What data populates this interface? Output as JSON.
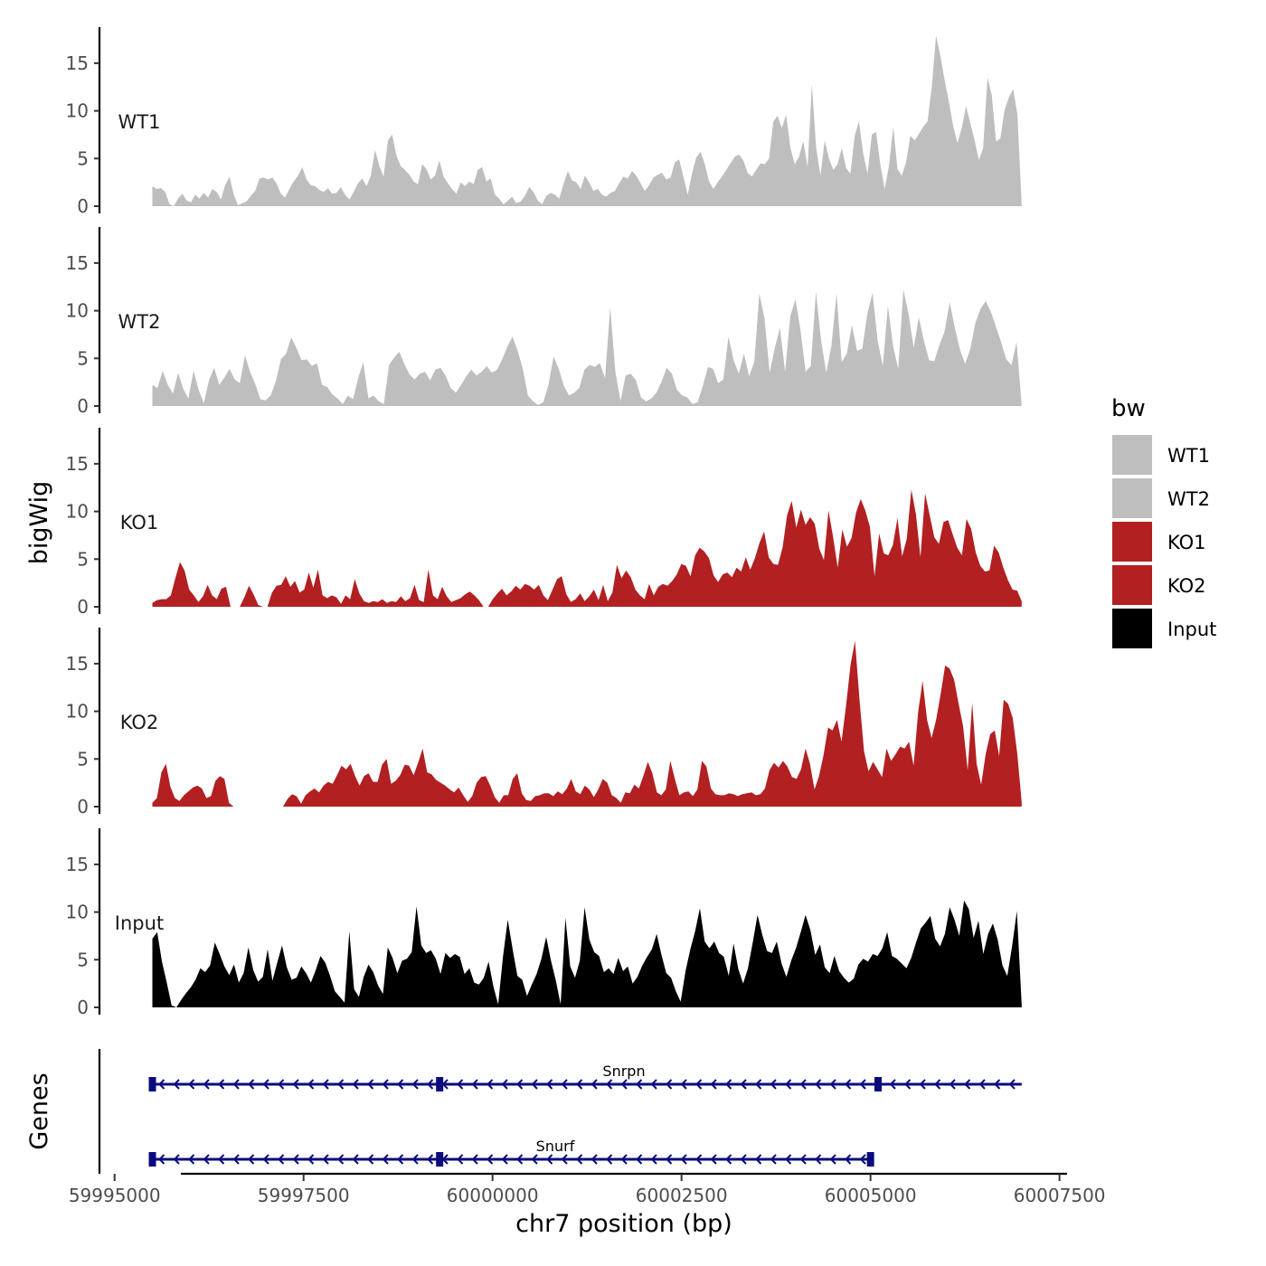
{
  "chart_data": {
    "type": "area",
    "ylabel": "bigWig",
    "xlabel": "chr7 position (bp)",
    "xlim": [
      59994800,
      60007600
    ],
    "x_ticks": [
      59995000,
      59997500,
      60000000,
      60002500,
      60005000,
      60007500
    ],
    "x_tick_labels": [
      "59995000",
      "59997500",
      "60000000",
      "60002500",
      "60005000",
      "60007500"
    ],
    "ylim": [
      0,
      18.5
    ],
    "y_ticks": [
      0,
      5,
      10,
      15
    ],
    "y_tick_labels": [
      "0",
      "5",
      "10",
      "15"
    ],
    "series_x_start": 59995500,
    "series_x_end": 60007000,
    "tracks": [
      {
        "name": "WT1",
        "color": "#bebebe",
        "values": [
          2.1,
          1.8,
          1.9,
          1.5,
          0.2,
          0,
          0.8,
          1.3,
          0.6,
          0.4,
          1.2,
          0.8,
          1.4,
          0.9,
          1.8,
          1.5,
          0.7,
          2.2,
          3.1,
          1.2,
          0.1,
          0.3,
          0.5,
          1.1,
          1.6,
          2.9,
          3.0,
          2.8,
          3.0,
          2.4,
          1.3,
          0.9,
          1.8,
          2.6,
          3.2,
          4.1,
          2.8,
          2.2,
          2.1,
          1.7,
          1.5,
          1.9,
          1.3,
          1.4,
          2.0,
          1.2,
          0.7,
          1.5,
          2.4,
          2.9,
          2.1,
          3.2,
          5.9,
          4.2,
          3.1,
          6.9,
          7.5,
          5.3,
          4.2,
          3.8,
          3.3,
          2.6,
          2.3,
          4.4,
          3.9,
          2.8,
          3.2,
          4.8,
          3.1,
          2.4,
          1.8,
          1.3,
          2.5,
          2.1,
          2.6,
          2.3,
          3.8,
          4.1,
          2.6,
          2.9,
          1.2,
          0.8,
          0.2,
          0.6,
          1.0,
          0.3,
          0.5,
          1.1,
          2.0,
          1.5,
          0.6,
          0.2,
          1.1,
          1.4,
          1.2,
          0.8,
          2.3,
          3.7,
          2.7,
          2.5,
          1.8,
          3.2,
          2.5,
          1.6,
          1.8,
          1.2,
          1.0,
          1.4,
          1.6,
          2.4,
          3.1,
          2.9,
          3.7,
          3.2,
          2.4,
          1.6,
          2.2,
          3.0,
          3.3,
          3.5,
          2.8,
          3.0,
          4.6,
          4.9,
          3.1,
          1.2,
          3.4,
          5.1,
          5.7,
          4.4,
          2.6,
          1.8,
          2.5,
          3.1,
          3.8,
          4.5,
          5.2,
          5.4,
          4.8,
          3.5,
          3.1,
          3.8,
          4.5,
          4.4,
          5.0,
          8.9,
          9.5,
          8.2,
          9.6,
          6.1,
          4.4,
          5.2,
          6.8,
          4.1,
          12.8,
          6.2,
          3.2,
          6.9,
          5.0,
          3.8,
          4.4,
          6.1,
          4.0,
          3.4,
          7.4,
          8.9,
          5.5,
          3.4,
          7.5,
          7.8,
          4.3,
          1.8,
          4.2,
          8.3,
          3.9,
          3.2,
          4.6,
          7.4,
          6.9,
          7.6,
          8.3,
          8.9,
          12.5,
          17.9,
          15.8,
          13.2,
          11.0,
          8.4,
          6.6,
          8.2,
          10.5,
          8.7,
          6.9,
          4.8,
          6.1,
          13.5,
          11.7,
          6.8,
          7.1,
          10.1,
          11.4,
          12.3,
          9.6,
          0.2
        ]
      },
      {
        "name": "WT2",
        "color": "#bebebe",
        "values": [
          2.2,
          1.9,
          3.7,
          2.2,
          1.3,
          3.5,
          1.8,
          0.8,
          3.7,
          1.7,
          0.3,
          2.7,
          4.0,
          2.2,
          3.0,
          3.9,
          2.8,
          2.4,
          5.3,
          3.6,
          2.3,
          0.7,
          0.6,
          1.1,
          2.6,
          4.9,
          5.5,
          7.2,
          6.1,
          4.8,
          4.9,
          4.2,
          4.5,
          2.2,
          2.0,
          1.2,
          0.8,
          0.2,
          1.1,
          0.7,
          2.9,
          4.6,
          0.8,
          1.1,
          0.5,
          0.2,
          4.3,
          5.1,
          5.7,
          4.4,
          3.3,
          2.8,
          3.4,
          3.6,
          2.7,
          3.8,
          4.0,
          3.2,
          1.9,
          1.4,
          2.2,
          3.1,
          3.8,
          3.2,
          3.6,
          4.2,
          3.5,
          3.8,
          4.9,
          6.2,
          7.3,
          5.8,
          3.9,
          1.1,
          0.5,
          0.1,
          0.4,
          2.2,
          5.2,
          3.9,
          2.1,
          1.1,
          1.4,
          1.9,
          3.8,
          4.3,
          4.1,
          4.5,
          2.9,
          10.4,
          3.6,
          0.5,
          3.2,
          3.4,
          2.7,
          0.9,
          0.5,
          0.8,
          1.4,
          2.6,
          4.0,
          3.4,
          1.7,
          1.1,
          0.9,
          0.2,
          0.4,
          2.1,
          4.1,
          3.9,
          2.4,
          2.8,
          7.3,
          4.8,
          3.4,
          5.5,
          3.1,
          4.6,
          11.8,
          9.2,
          3.5,
          6.1,
          8.2,
          3.6,
          9.4,
          11.2,
          8.0,
          3.6,
          4.2,
          12.0,
          6.9,
          3.5,
          6.3,
          11.8,
          4.6,
          5.5,
          8.5,
          5.8,
          6.0,
          9.7,
          11.9,
          6.8,
          4.2,
          10.5,
          6.3,
          3.9,
          12.2,
          9.7,
          6.1,
          9.3,
          6.8,
          4.8,
          4.7,
          6.4,
          7.8,
          10.9,
          8.2,
          5.9,
          4.4,
          6.0,
          8.7,
          10.2,
          11.0,
          9.9,
          8.3,
          6.7,
          4.9,
          4.3,
          6.7,
          0.1
        ]
      },
      {
        "name": "KO1",
        "color": "#b22022",
        "values": [
          0.4,
          0.7,
          0.8,
          0.8,
          1.2,
          3.0,
          4.7,
          3.8,
          1.8,
          1.2,
          0.5,
          1.1,
          2.3,
          1.2,
          0.8,
          1.9,
          2.1,
          0,
          0,
          0,
          1.0,
          2.2,
          1.3,
          0.2,
          0,
          0,
          1.5,
          2.2,
          2.3,
          3.2,
          2.1,
          2.7,
          1.5,
          1.8,
          3.6,
          2.0,
          3.9,
          1.2,
          0.9,
          1.2,
          1.0,
          0.3,
          1.2,
          0.8,
          2.9,
          1.4,
          0.6,
          0.4,
          0.6,
          0.5,
          0.8,
          0.4,
          0.6,
          0.5,
          1.1,
          0.6,
          0.9,
          2.3,
          0.7,
          0.5,
          3.9,
          1.2,
          0.8,
          2.1,
          1.1,
          0.5,
          0.7,
          0.9,
          1.3,
          1.6,
          1.2,
          0.7,
          0,
          0,
          0.8,
          1.4,
          1.9,
          1.2,
          1.6,
          2.2,
          1.8,
          2.4,
          2.2,
          1.8,
          2.3,
          1.2,
          0.7,
          1.8,
          2.9,
          3.2,
          1.3,
          0.5,
          0.8,
          1.4,
          0.6,
          1.1,
          1.8,
          0.7,
          2.3,
          0.6,
          1.5,
          4.4,
          3.0,
          3.8,
          3.1,
          1.8,
          1.2,
          0.8,
          2.4,
          1.2,
          2.1,
          2.4,
          2.2,
          2.7,
          3.4,
          4.5,
          4.3,
          3.2,
          5.4,
          6.2,
          5.8,
          5.1,
          3.3,
          2.6,
          3.4,
          3.6,
          3.1,
          4.1,
          3.7,
          5.2,
          3.9,
          5.1,
          6.7,
          7.9,
          5.2,
          4.5,
          4.4,
          6.2,
          9.6,
          11.1,
          8.3,
          10.2,
          8.6,
          9.4,
          8.7,
          6.1,
          4.9,
          10.1,
          7.3,
          4.1,
          8.1,
          6.3,
          7.2,
          9.9,
          11.3,
          10.1,
          8.4,
          3.2,
          7.7,
          5.6,
          5.4,
          6.5,
          9.3,
          5.3,
          7.1,
          12.3,
          9.7,
          5.2,
          11.9,
          9.6,
          7.3,
          6.6,
          8.9,
          9.1,
          7.6,
          6.2,
          5.4,
          9.2,
          8.2,
          5.7,
          4.3,
          3.7,
          3.8,
          6.4,
          5.7,
          4.1,
          2.8,
          1.8,
          1.7,
          0.6
        ]
      },
      {
        "name": "KO2",
        "color": "#b22022",
        "values": [
          0.4,
          0.9,
          3.6,
          4.5,
          2.1,
          0.9,
          0.6,
          1.2,
          1.6,
          2.0,
          2.2,
          1.9,
          0.9,
          1.1,
          2.7,
          3.2,
          2.9,
          0.4,
          0,
          0,
          0,
          0,
          0,
          0,
          0,
          0,
          0,
          0,
          0,
          0,
          0.8,
          1.3,
          1.1,
          0.3,
          1.2,
          1.6,
          1.9,
          1.5,
          2.2,
          2.6,
          2.4,
          3.3,
          4.3,
          3.9,
          4.5,
          3.2,
          2.2,
          3.2,
          3.5,
          2.6,
          2.6,
          4.4,
          5.0,
          2.4,
          2.7,
          3.3,
          4.4,
          4.3,
          3.3,
          4.6,
          6.1,
          3.6,
          3.4,
          2.8,
          2.5,
          2.2,
          1.8,
          1.5,
          2.0,
          1.2,
          0.5,
          1.1,
          2.5,
          3.1,
          3.2,
          2.2,
          1.0,
          0.4,
          1.2,
          1.2,
          2.9,
          3.5,
          1.4,
          0.7,
          0.6,
          1.1,
          1.2,
          1.4,
          1.4,
          1.1,
          1.6,
          1.3,
          1.9,
          2.9,
          1.6,
          1.3,
          2.2,
          1.8,
          1.0,
          1.8,
          2.9,
          2.5,
          1.2,
          0.9,
          0.4,
          1.5,
          1.4,
          2.3,
          1.9,
          3.2,
          4.7,
          3.5,
          1.5,
          1.2,
          1.8,
          4.8,
          2.9,
          1.2,
          1.5,
          1.6,
          1.1,
          1.8,
          4.8,
          4.2,
          1.9,
          1.3,
          1.2,
          1.2,
          1.4,
          1.3,
          1.1,
          1.3,
          1.4,
          1.5,
          1.2,
          1.3,
          1.9,
          3.8,
          4.6,
          4.1,
          4.8,
          4.2,
          3.1,
          2.9,
          3.9,
          6.1,
          4.5,
          1.8,
          3.2,
          5.4,
          8.3,
          8.0,
          9.1,
          6.8,
          10.6,
          14.9,
          17.4,
          11.2,
          5.8,
          3.7,
          4.7,
          3.9,
          3.1,
          6.1,
          4.8,
          5.5,
          6.3,
          6.1,
          6.8,
          4.3,
          9.9,
          13.2,
          9.1,
          7.2,
          9.1,
          11.8,
          14.8,
          14.5,
          13.3,
          10.8,
          8.4,
          3.8,
          10.9,
          4.5,
          2.3,
          5.5,
          7.6,
          8.0,
          5.3,
          11.2,
          10.8,
          9.3,
          5.6,
          0.5
        ]
      },
      {
        "name": "Input",
        "color": "#000000",
        "values": [
          7.2,
          7.9,
          4.8,
          2.6,
          0.2,
          0,
          0.8,
          1.5,
          2.1,
          2.9,
          4.1,
          3.7,
          4.4,
          6.8,
          5.6,
          4.3,
          3.4,
          4.5,
          2.6,
          3.6,
          6.3,
          3.9,
          2.7,
          3.2,
          6.1,
          2.8,
          4.7,
          6.5,
          4.2,
          2.9,
          3.1,
          4.3,
          3.6,
          2.6,
          3.9,
          5.4,
          4.7,
          3.3,
          1.7,
          1.1,
          0.5,
          8.0,
          1.9,
          1.1,
          3.2,
          4.5,
          3.7,
          2.3,
          1.4,
          6.3,
          5.2,
          3.6,
          4.9,
          5.1,
          5.8,
          10.6,
          6.5,
          5.7,
          6.0,
          5.1,
          3.5,
          5.7,
          5.2,
          5.6,
          5.3,
          3.5,
          4.1,
          2.6,
          2.4,
          3.1,
          4.8,
          2.2,
          0.3,
          5.3,
          9.2,
          6.1,
          3.3,
          2.9,
          1.2,
          2.4,
          3.5,
          5.1,
          7.4,
          4.9,
          2.8,
          0.3,
          9.4,
          4.3,
          3.1,
          4.9,
          10.5,
          7.1,
          5.8,
          5.4,
          3.7,
          4.1,
          3.5,
          5.2,
          3.8,
          4.3,
          2.5,
          3.2,
          4.4,
          5.3,
          6.1,
          7.7,
          5.5,
          3.6,
          3.1,
          1.7,
          0.6,
          3.8,
          6.1,
          8.0,
          10.4,
          6.9,
          6.2,
          6.9,
          5.7,
          5.3,
          3.3,
          6.7,
          4.0,
          2.5,
          4.1,
          6.8,
          9.7,
          7.6,
          5.9,
          5.7,
          6.9,
          4.6,
          3.2,
          4.9,
          6.2,
          7.9,
          9.7,
          8.1,
          5.5,
          6.6,
          4.2,
          3.6,
          5.4,
          3.8,
          3.1,
          2.6,
          3.0,
          4.5,
          5.1,
          4.8,
          5.6,
          5.4,
          6.2,
          7.9,
          5.4,
          5.1,
          4.6,
          4.1,
          5.2,
          6.8,
          8.3,
          8.9,
          9.6,
          7.2,
          6.4,
          7.7,
          10.5,
          9.2,
          7.5,
          11.2,
          10.3,
          7.3,
          9.1,
          5.6,
          7.7,
          8.8,
          7.1,
          4.4,
          3.3,
          6.4,
          10.1,
          0.3
        ]
      }
    ],
    "gene_track": {
      "title": "Genes",
      "genes": [
        {
          "name": "Snrpn",
          "start": 59995500,
          "end": 60007000,
          "strand": "-",
          "exons": [
            59995500,
            59999300,
            60005100
          ]
        },
        {
          "name": "Snurf",
          "start": 59995500,
          "end": 60005000,
          "strand": "-",
          "exons": [
            59995500,
            59999300,
            60005000
          ]
        }
      ],
      "color": "#0b0b7f"
    },
    "legend": {
      "title": "bw",
      "position": "right",
      "entries": [
        {
          "label": "WT1",
          "color": "#bebebe"
        },
        {
          "label": "WT2",
          "color": "#bebebe"
        },
        {
          "label": "KO1",
          "color": "#b22022"
        },
        {
          "label": "KO2",
          "color": "#b22022"
        },
        {
          "label": "Input",
          "color": "#000000"
        }
      ]
    }
  }
}
